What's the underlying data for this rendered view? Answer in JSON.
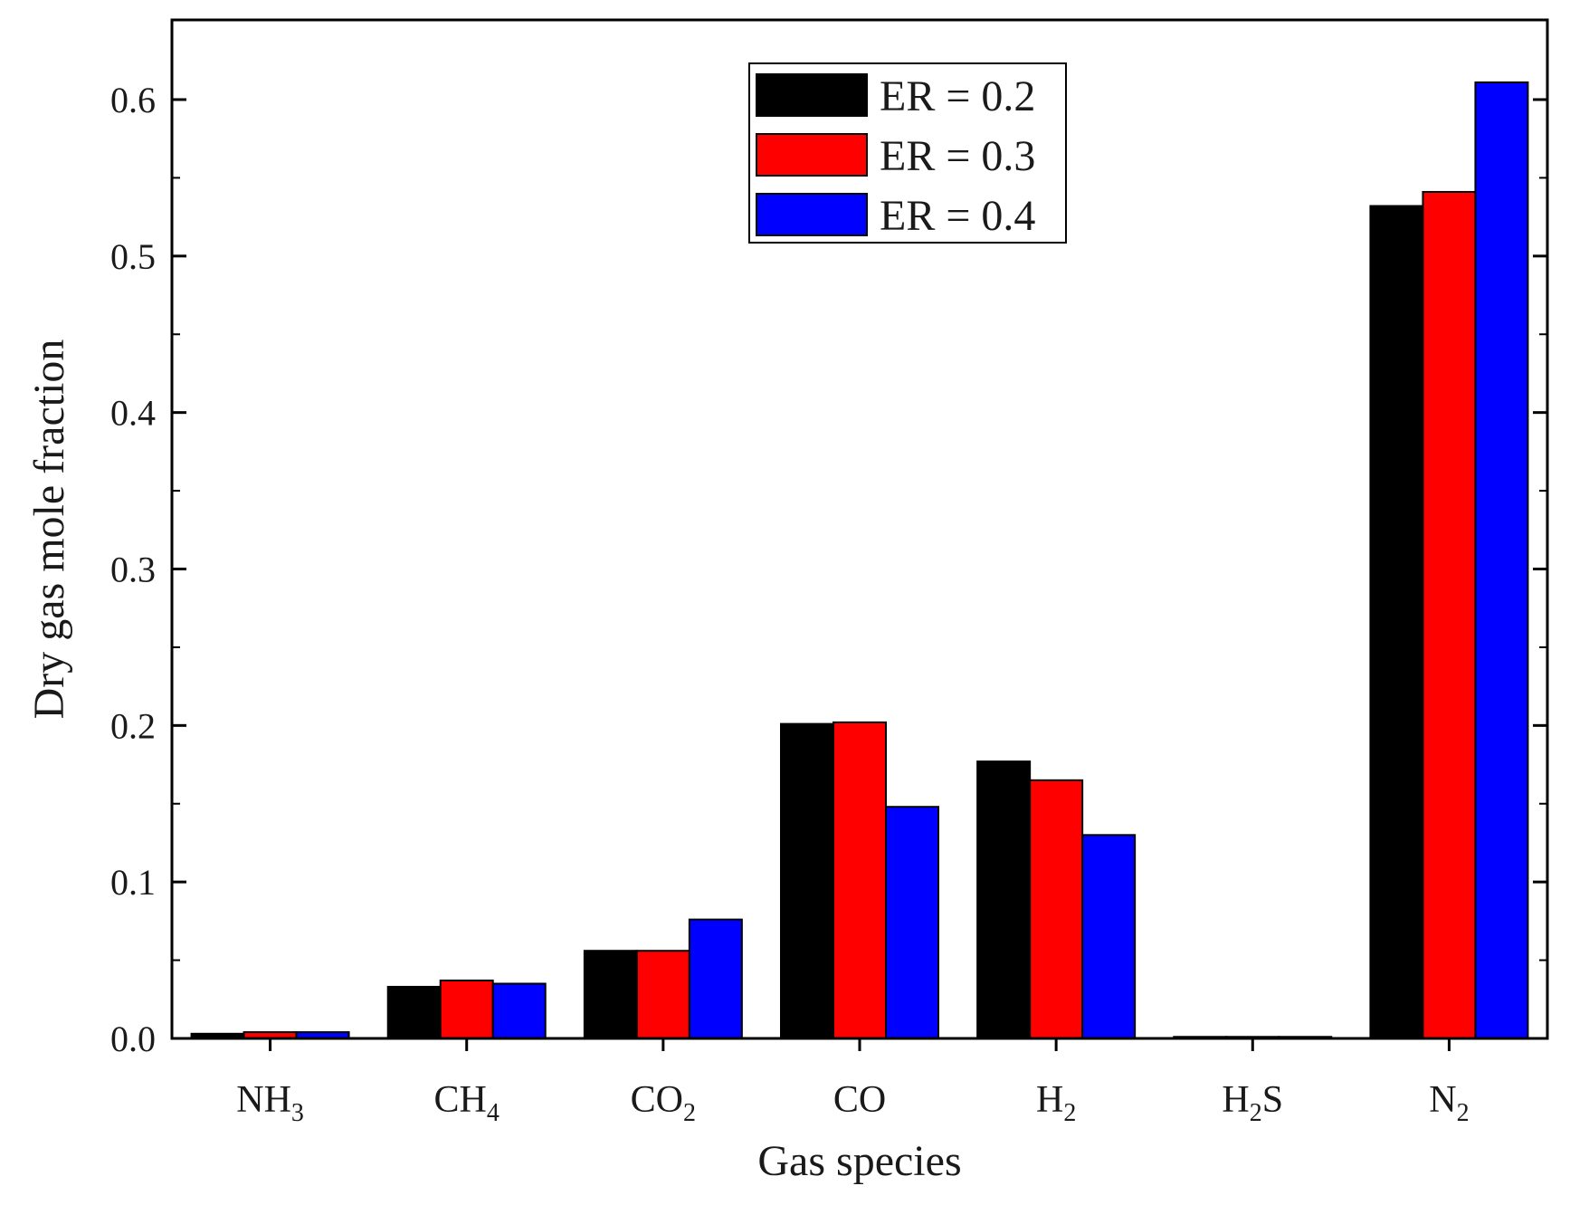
{
  "chart_data": {
    "type": "bar",
    "title": "",
    "xlabel": "Gas species",
    "ylabel": "Dry gas mole fraction",
    "ylim": [
      0.0,
      0.65
    ],
    "yticks": [
      "0.0",
      "0.1",
      "0.2",
      "0.3",
      "0.4",
      "0.5",
      "0.6"
    ],
    "grid": false,
    "legend_position": "top-center",
    "categories": [
      {
        "base": "NH",
        "sub": "3",
        "tail": ""
      },
      {
        "base": "CH",
        "sub": "4",
        "tail": ""
      },
      {
        "base": "CO",
        "sub": "2",
        "tail": ""
      },
      {
        "base": "CO",
        "sub": "",
        "tail": ""
      },
      {
        "base": "H",
        "sub": "2",
        "tail": ""
      },
      {
        "base": "H",
        "sub": "2",
        "tail": "S"
      },
      {
        "base": "N",
        "sub": "2",
        "tail": ""
      }
    ],
    "series": [
      {
        "name": "ER = 0.2",
        "color": "#000000",
        "values": [
          0.003,
          0.033,
          0.056,
          0.201,
          0.177,
          0.001,
          0.532
        ]
      },
      {
        "name": "ER = 0.3",
        "color": "#ff0000",
        "values": [
          0.004,
          0.037,
          0.056,
          0.202,
          0.165,
          0.001,
          0.541
        ]
      },
      {
        "name": "ER = 0.4",
        "color": "#0000ff",
        "values": [
          0.004,
          0.035,
          0.076,
          0.148,
          0.13,
          0.001,
          0.611
        ]
      }
    ]
  }
}
